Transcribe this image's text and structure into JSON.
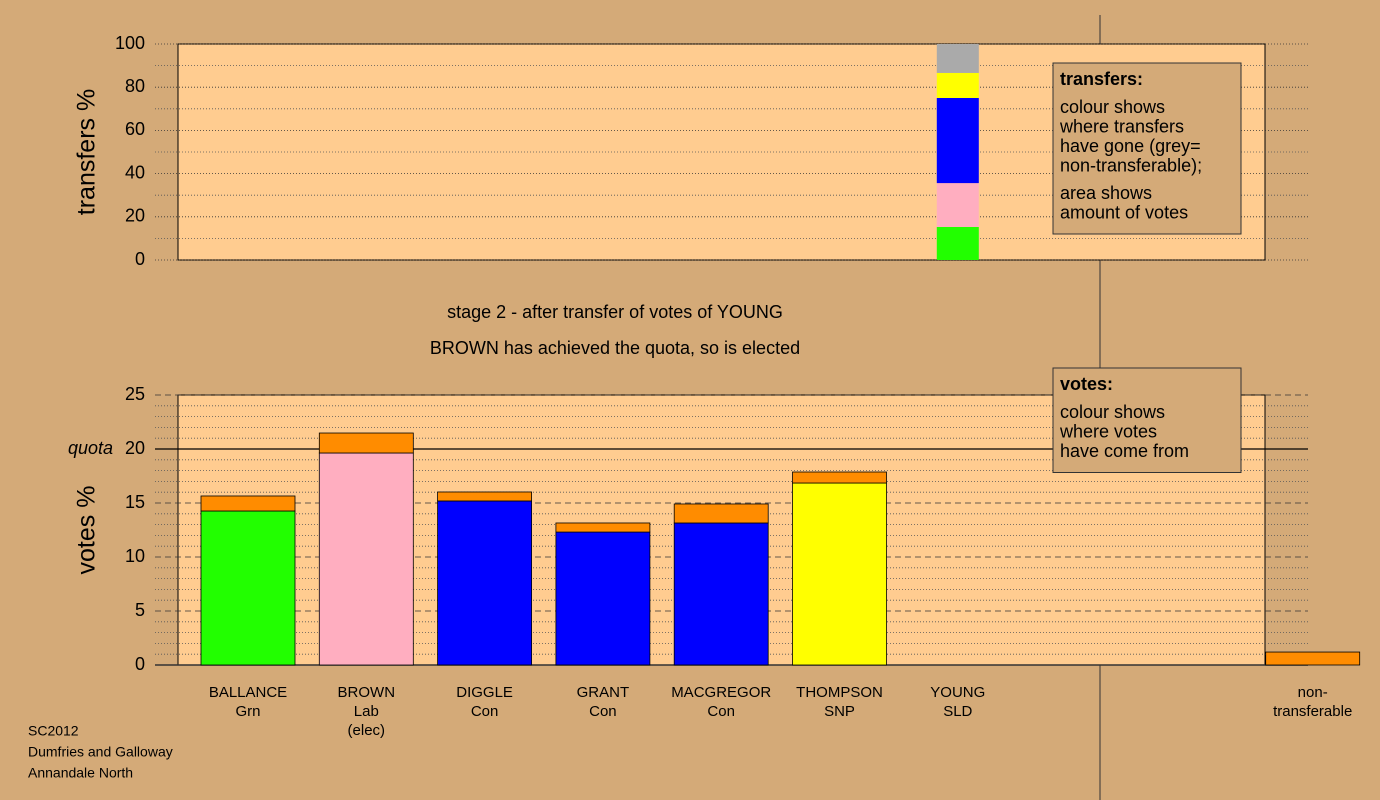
{
  "chart_data": [
    {
      "type": "stacked-bar",
      "ylabel": "transfers %",
      "ylim": [
        0,
        100
      ],
      "yticks": [
        0,
        20,
        40,
        60,
        80,
        100
      ],
      "grid": true,
      "series": [
        {
          "color": "#22ff00",
          "values": [
            15.3
          ]
        },
        {
          "color": "#ffaec0",
          "values": [
            20.3
          ]
        },
        {
          "color": "#0000ff",
          "values": [
            39.4
          ]
        },
        {
          "color": "#ffff00",
          "values": [
            11.6
          ]
        },
        {
          "color": "#aaaaaa",
          "values": [
            13.4
          ]
        }
      ],
      "legend": {
        "title": "transfers:",
        "lines": [
          [
            "colour shows",
            "where transfers",
            "have gone (grey=",
            "non-transferable);"
          ],
          [
            "area shows",
            "amount of votes"
          ]
        ]
      }
    },
    {
      "type": "stacked-bar",
      "subtitle": [
        "stage 2 - after transfer of votes of YOUNG",
        "BROWN has achieved the quota, so is elected"
      ],
      "ylabel": "votes %",
      "ylim": [
        0,
        25
      ],
      "yticks": [
        0,
        5,
        10,
        15,
        20,
        25
      ],
      "grid": true,
      "quota": {
        "value": 20,
        "label": "quota"
      },
      "categories": [
        [
          "BALLANCE",
          "Grn"
        ],
        [
          "BROWN",
          "Lab",
          "(elec)"
        ],
        [
          "DIGGLE",
          "Con"
        ],
        [
          "GRANT",
          "Con"
        ],
        [
          "MACGREGOR",
          "Con"
        ],
        [
          "THOMPSON",
          "SNP"
        ],
        [
          "YOUNG",
          "SLD"
        ],
        [
          "non-",
          "transferable"
        ]
      ],
      "series": [
        {
          "colors": [
            "#22ff00",
            "#ffaec0",
            "#0000ff",
            "#0000ff",
            "#0000ff",
            "#ffff00",
            "#ffff00",
            "#ff8c00"
          ],
          "values": [
            14.26,
            19.63,
            15.19,
            12.31,
            13.15,
            16.85,
            0,
            null
          ]
        },
        {
          "color": "#ff8c00",
          "values": [
            1.39,
            1.85,
            0.83,
            0.84,
            1.76,
            1.02,
            0,
            1.2
          ]
        }
      ],
      "legend": {
        "title": "votes:",
        "lines": [
          [
            "colour shows",
            "where votes",
            "have come from"
          ]
        ]
      },
      "footer": [
        "SC2012",
        "Dumfries and Galloway",
        "Annandale North"
      ]
    }
  ]
}
